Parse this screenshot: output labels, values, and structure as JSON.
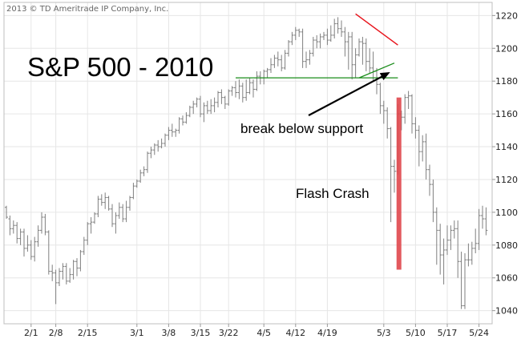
{
  "copyright": "2013 © TD Ameritrade IP Company, Inc.",
  "chart_data": {
    "type": "ohlc",
    "title": "S&P 500 - 2010",
    "ylim": [
      1032,
      1228
    ],
    "y_ticks": [
      1040,
      1060,
      1080,
      1100,
      1120,
      1140,
      1160,
      1180,
      1200,
      1220
    ],
    "x_tick_labels": [
      "2/1",
      "2/8",
      "2/15",
      "3/1",
      "3/8",
      "3/15",
      "3/22",
      "4/5",
      "4/12",
      "4/19",
      "5/3",
      "5/10",
      "5/17",
      "5/24"
    ],
    "x_tick_bar_index": [
      7,
      14,
      23,
      37,
      46,
      55,
      63,
      73,
      82,
      91,
      107,
      116,
      125,
      134
    ],
    "grid": true,
    "bar_color": "#7f7f7f",
    "bars": [
      [
        1103,
        1097,
        1104,
        1096
      ],
      [
        1096,
        1090,
        1098,
        1086
      ],
      [
        1090,
        1092,
        1095,
        1087
      ],
      [
        1092,
        1084,
        1094,
        1081
      ],
      [
        1084,
        1088,
        1090,
        1080
      ],
      [
        1088,
        1078,
        1090,
        1073
      ],
      [
        1078,
        1080,
        1086,
        1076
      ],
      [
        1080,
        1073,
        1083,
        1071
      ],
      [
        1073,
        1082,
        1085,
        1070
      ],
      [
        1082,
        1089,
        1092,
        1079
      ],
      [
        1089,
        1097,
        1100,
        1087
      ],
      [
        1097,
        1088,
        1099,
        1086
      ],
      [
        1088,
        1064,
        1089,
        1062
      ],
      [
        1064,
        1063,
        1068,
        1058
      ],
      [
        1063,
        1057,
        1065,
        1044
      ],
      [
        1057,
        1064,
        1066,
        1055
      ],
      [
        1064,
        1067,
        1069,
        1059
      ],
      [
        1067,
        1058,
        1069,
        1056
      ],
      [
        1058,
        1062,
        1066,
        1057
      ],
      [
        1062,
        1070,
        1071,
        1059
      ],
      [
        1070,
        1066,
        1072,
        1061
      ],
      [
        1066,
        1076,
        1077,
        1064
      ],
      [
        1076,
        1083,
        1085,
        1074
      ],
      [
        1083,
        1093,
        1094,
        1080
      ],
      [
        1093,
        1094,
        1097,
        1087
      ],
      [
        1094,
        1099,
        1100,
        1093
      ],
      [
        1099,
        1108,
        1110,
        1097
      ],
      [
        1108,
        1106,
        1111,
        1104
      ],
      [
        1106,
        1109,
        1112,
        1102
      ],
      [
        1109,
        1102,
        1110,
        1101
      ],
      [
        1102,
        1093,
        1105,
        1091
      ],
      [
        1093,
        1098,
        1100,
        1087
      ],
      [
        1098,
        1103,
        1106,
        1096
      ],
      [
        1103,
        1096,
        1105,
        1094
      ],
      [
        1096,
        1103,
        1107,
        1094
      ],
      [
        1103,
        1109,
        1110,
        1101
      ],
      [
        1109,
        1116,
        1118,
        1108
      ],
      [
        1116,
        1119,
        1120,
        1115
      ],
      [
        1119,
        1124,
        1126,
        1118
      ],
      [
        1124,
        1126,
        1128,
        1122
      ],
      [
        1126,
        1136,
        1137,
        1124
      ],
      [
        1136,
        1138,
        1140,
        1133
      ],
      [
        1138,
        1141,
        1142,
        1135
      ],
      [
        1141,
        1140,
        1144,
        1137
      ],
      [
        1140,
        1142,
        1145,
        1139
      ],
      [
        1142,
        1147,
        1148,
        1140
      ],
      [
        1147,
        1150,
        1152,
        1144
      ],
      [
        1150,
        1149,
        1154,
        1146
      ],
      [
        1149,
        1150,
        1151,
        1146
      ],
      [
        1150,
        1157,
        1158,
        1148
      ],
      [
        1157,
        1155,
        1159,
        1153
      ],
      [
        1155,
        1159,
        1161,
        1154
      ],
      [
        1159,
        1164,
        1165,
        1158
      ],
      [
        1164,
        1166,
        1168,
        1160
      ],
      [
        1166,
        1169,
        1170,
        1164
      ],
      [
        1169,
        1160,
        1171,
        1158
      ],
      [
        1160,
        1165,
        1167,
        1155
      ],
      [
        1165,
        1162,
        1168,
        1160
      ],
      [
        1162,
        1165,
        1169,
        1160
      ],
      [
        1165,
        1167,
        1170,
        1161
      ],
      [
        1167,
        1173,
        1174,
        1164
      ],
      [
        1173,
        1170,
        1175,
        1166
      ],
      [
        1170,
        1166,
        1171,
        1163
      ],
      [
        1166,
        1174,
        1175,
        1165
      ],
      [
        1174,
        1176,
        1177,
        1171
      ],
      [
        1176,
        1173,
        1180,
        1170
      ],
      [
        1173,
        1177,
        1181,
        1169
      ],
      [
        1177,
        1170,
        1179,
        1167
      ],
      [
        1170,
        1173,
        1181,
        1168
      ],
      [
        1173,
        1179,
        1182,
        1172
      ],
      [
        1179,
        1175,
        1181,
        1170
      ],
      [
        1175,
        1183,
        1186,
        1174
      ],
      [
        1183,
        1182,
        1186,
        1178
      ],
      [
        1182,
        1186,
        1187,
        1178
      ],
      [
        1186,
        1187,
        1188,
        1182
      ],
      [
        1187,
        1190,
        1194,
        1185
      ],
      [
        1190,
        1194,
        1196,
        1188
      ],
      [
        1194,
        1193,
        1198,
        1189
      ],
      [
        1193,
        1188,
        1196,
        1186
      ],
      [
        1188,
        1197,
        1199,
        1187
      ],
      [
        1197,
        1204,
        1205,
        1195
      ],
      [
        1204,
        1208,
        1210,
        1202
      ],
      [
        1208,
        1211,
        1213,
        1205
      ],
      [
        1211,
        1210,
        1212,
        1207
      ],
      [
        1210,
        1192,
        1212,
        1188
      ],
      [
        1192,
        1193,
        1198,
        1188
      ],
      [
        1193,
        1197,
        1199,
        1190
      ],
      [
        1197,
        1205,
        1207,
        1195
      ],
      [
        1205,
        1204,
        1208,
        1200
      ],
      [
        1204,
        1207,
        1209,
        1200
      ],
      [
        1207,
        1208,
        1210,
        1205
      ],
      [
        1208,
        1205,
        1212,
        1202
      ],
      [
        1205,
        1208,
        1214,
        1204
      ],
      [
        1208,
        1215,
        1218,
        1206
      ],
      [
        1215,
        1212,
        1219,
        1209
      ],
      [
        1212,
        1210,
        1217,
        1207
      ],
      [
        1210,
        1204,
        1213,
        1195
      ],
      [
        1204,
        1207,
        1210,
        1187
      ],
      [
        1207,
        1190,
        1210,
        1181
      ],
      [
        1190,
        1196,
        1200,
        1182
      ],
      [
        1196,
        1204,
        1206,
        1195
      ],
      [
        1204,
        1203,
        1207,
        1190
      ],
      [
        1203,
        1192,
        1206,
        1186
      ],
      [
        1192,
        1188,
        1200,
        1185
      ],
      [
        1188,
        1186,
        1198,
        1180
      ],
      [
        1186,
        1178,
        1188,
        1172
      ],
      [
        1178,
        1165,
        1179,
        1160
      ],
      [
        1165,
        1162,
        1168,
        1154
      ],
      [
        1162,
        1151,
        1164,
        1145
      ],
      [
        1151,
        1128,
        1152,
        1094
      ],
      [
        1128,
        1125,
        1132,
        1112
      ],
      [
        1125,
        1160,
        1166,
        1123
      ],
      [
        1160,
        1158,
        1162,
        1150
      ],
      [
        1158,
        1170,
        1172,
        1154
      ],
      [
        1170,
        1171,
        1174,
        1163
      ],
      [
        1171,
        1154,
        1172,
        1148
      ],
      [
        1154,
        1150,
        1158,
        1145
      ],
      [
        1150,
        1137,
        1153,
        1128
      ],
      [
        1137,
        1143,
        1147,
        1131
      ],
      [
        1143,
        1126,
        1148,
        1120
      ],
      [
        1126,
        1117,
        1129,
        1110
      ],
      [
        1117,
        1100,
        1120,
        1094
      ],
      [
        1100,
        1089,
        1103,
        1068
      ],
      [
        1089,
        1074,
        1093,
        1062
      ],
      [
        1074,
        1077,
        1084,
        1056
      ],
      [
        1077,
        1083,
        1092,
        1074
      ],
      [
        1083,
        1089,
        1092,
        1077
      ],
      [
        1089,
        1090,
        1095,
        1084
      ],
      [
        1090,
        1070,
        1095,
        1060
      ],
      [
        1070,
        1043,
        1076,
        1041
      ],
      [
        1043,
        1071,
        1075,
        1041
      ],
      [
        1071,
        1071,
        1081,
        1067
      ],
      [
        1071,
        1078,
        1082,
        1068
      ],
      [
        1078,
        1081,
        1090,
        1075
      ],
      [
        1081,
        1098,
        1102,
        1077
      ],
      [
        1098,
        1096,
        1104,
        1090
      ],
      [
        1096,
        1089,
        1103,
        1086
      ]
    ],
    "annotations": {
      "support_level": 1182,
      "support_label": "break below support",
      "crash_label": "Flash Crash",
      "support_color": "#1a8c1a",
      "resistance_color": "#e8141c",
      "crash_bar_color": "#e0474c"
    }
  }
}
